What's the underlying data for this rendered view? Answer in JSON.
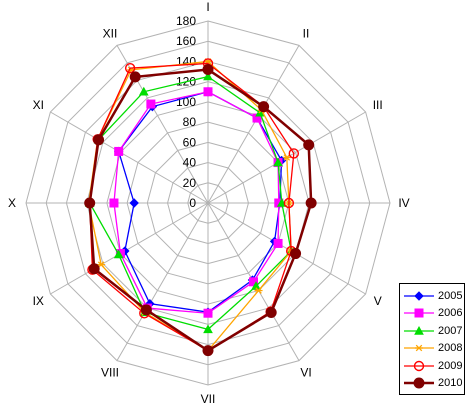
{
  "chart_data": {
    "type": "radar",
    "categories": [
      "I",
      "II",
      "III",
      "IV",
      "V",
      "VI",
      "VII",
      "VIII",
      "IX",
      "X",
      "XI",
      "XII"
    ],
    "radial_ticks": [
      0,
      20,
      40,
      60,
      80,
      100,
      120,
      140,
      160,
      180
    ],
    "rlim": [
      0,
      180
    ],
    "grid": true,
    "legend_position": "bottom-right",
    "series": [
      {
        "name": "2005",
        "color": "#0000ff",
        "marker": "diamond",
        "values": [
          110,
          97,
          84,
          71,
          76,
          88,
          108,
          115,
          95,
          73,
          102,
          110
        ]
      },
      {
        "name": "2006",
        "color": "#ff00ff",
        "marker": "square",
        "values": [
          110,
          97,
          80,
          70,
          80,
          90,
          109,
          120,
          100,
          93,
          102,
          113
        ]
      },
      {
        "name": "2007",
        "color": "#00dd00",
        "marker": "triangle",
        "values": [
          125,
          103,
          80,
          73,
          95,
          95,
          125,
          125,
          102,
          117,
          125,
          127
        ]
      },
      {
        "name": "2008",
        "color": "#ffa500",
        "marker": "star",
        "values": [
          140,
          106,
          90,
          80,
          95,
          100,
          146,
          125,
          122,
          118,
          126,
          152
        ]
      },
      {
        "name": "2009",
        "color": "#ff0000",
        "marker": "circle",
        "values": [
          138,
          110,
          98,
          80,
          95,
          124,
          146,
          126,
          132,
          117,
          126,
          154
        ]
      },
      {
        "name": "2010",
        "color": "#800000",
        "marker": "dot",
        "values": [
          132,
          110,
          115,
          102,
          100,
          125,
          146,
          122,
          130,
          117,
          125,
          144
        ]
      }
    ]
  }
}
